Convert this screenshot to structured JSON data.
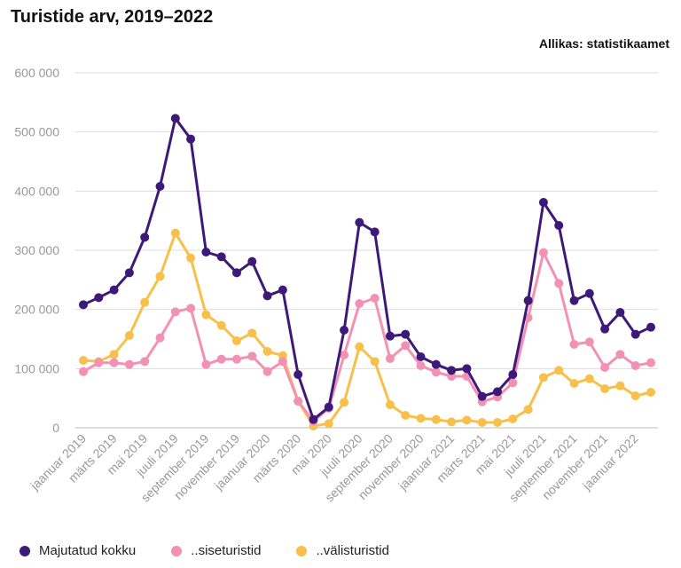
{
  "chart_data": {
    "type": "line",
    "title": "Turistide arv, 2019–2022",
    "source": "Allikas: statistikaamet",
    "ylim": [
      0,
      600000
    ],
    "y_ticks": [
      0,
      100000,
      200000,
      300000,
      400000,
      500000,
      600000
    ],
    "y_tick_labels": [
      "0",
      "100 000",
      "200 000",
      "300 000",
      "400 000",
      "500 000",
      "600 000"
    ],
    "x_tick_labels": [
      "jaanuar 2019",
      "märts 2019",
      "mai 2019",
      "juuli 2019",
      "september 2019",
      "november 2019",
      "jaanuar 2020",
      "märts 2020",
      "mai 2020",
      "juuli 2020",
      "september 2020",
      "november 2020",
      "jaanuar 2021",
      "märts 2021",
      "mai 2021",
      "juuli 2021",
      "september 2021",
      "november 2021",
      "jaanuar 2022"
    ],
    "series": [
      {
        "name": "Majutatud kokku",
        "color": "#3d1a78",
        "values": [
          208000,
          220000,
          233000,
          262000,
          322000,
          408000,
          523000,
          488000,
          297000,
          289000,
          262000,
          281000,
          223000,
          233000,
          90000,
          14000,
          35000,
          165000,
          347000,
          331000,
          155000,
          158000,
          120000,
          107000,
          97000,
          100000,
          53000,
          61000,
          90000,
          215000,
          381000,
          342000,
          215000,
          227000,
          167000,
          195000,
          158000,
          170000
        ]
      },
      {
        "name": "..siseturistid",
        "color": "#f291b4",
        "values": [
          95000,
          110000,
          110000,
          107000,
          112000,
          152000,
          196000,
          202000,
          107000,
          116000,
          116000,
          121000,
          95000,
          112000,
          45000,
          11000,
          33000,
          123000,
          210000,
          219000,
          117000,
          139000,
          105000,
          94000,
          87000,
          87000,
          44000,
          52000,
          76000,
          186000,
          296000,
          244000,
          141000,
          145000,
          102000,
          124000,
          105000,
          110000
        ]
      },
      {
        "name": "..välisturistid",
        "color": "#f8c04a",
        "values": [
          114000,
          112000,
          124000,
          156000,
          212000,
          256000,
          329000,
          287000,
          191000,
          173000,
          147000,
          160000,
          129000,
          122000,
          45000,
          3000,
          7000,
          43000,
          137000,
          112000,
          39000,
          21000,
          16000,
          14000,
          10000,
          13000,
          9000,
          9000,
          15000,
          31000,
          85000,
          97000,
          75000,
          83000,
          66000,
          71000,
          54000,
          60000
        ]
      }
    ],
    "legend_position": "bottom-left"
  }
}
